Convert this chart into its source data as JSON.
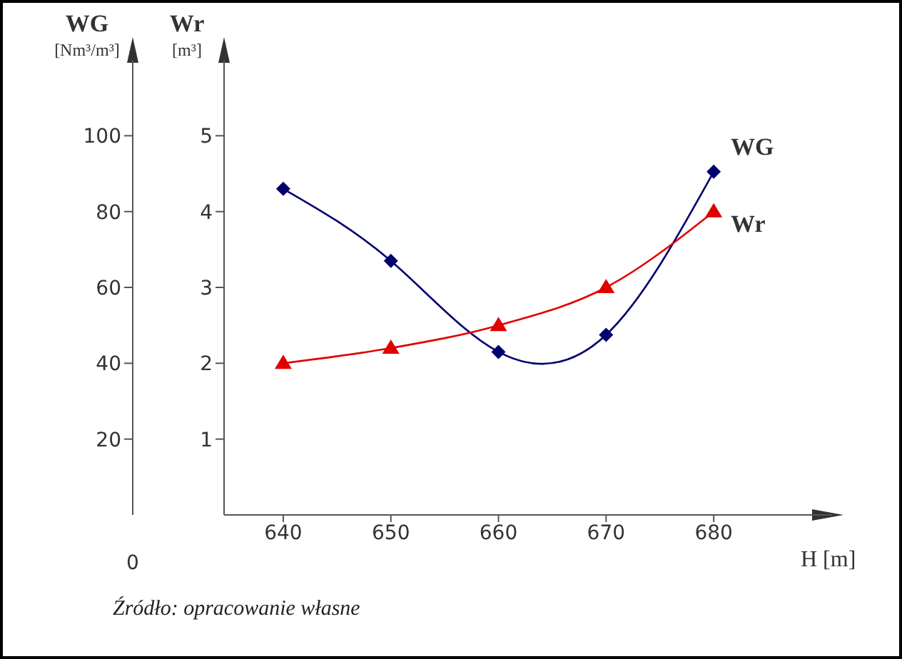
{
  "chart_data": {
    "type": "line",
    "xlabel": "H [m]",
    "ylabel": "WG\n[Nm³/m³]",
    "y2label": "Wr\n[m³]",
    "x": [
      640,
      650,
      660,
      670,
      680
    ],
    "xlim": [
      634.5,
      691
    ],
    "xticks": [
      640,
      650,
      660,
      670,
      680
    ],
    "ylim": [
      0,
      120
    ],
    "yticks": [
      20,
      40,
      60,
      80,
      100
    ],
    "y2lim": [
      0,
      6
    ],
    "y2ticks": [
      1,
      2,
      3,
      4,
      5
    ],
    "series": [
      {
        "name": "WG",
        "color": "#00006e",
        "values": [
          86,
          67,
          43,
          47.5,
          90.5
        ],
        "marker": "diamond",
        "axis": "y"
      },
      {
        "name": "Wr",
        "color": "#e00000",
        "values": [
          2.0,
          2.2,
          2.5,
          3.0,
          4.0
        ],
        "marker": "triangle",
        "axis": "y2"
      }
    ],
    "annotations": [
      "0",
      "Źródło: opracowanie własne"
    ]
  }
}
